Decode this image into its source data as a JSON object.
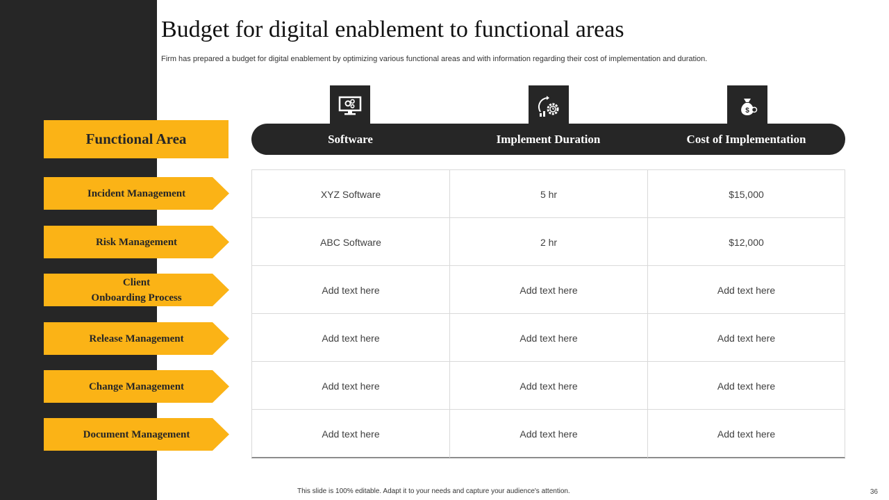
{
  "slide": {
    "title": "Budget for digital enablement to functional areas",
    "subtitle": "Firm has prepared a budget for digital enablement by optimizing various functional areas and with information regarding their cost of implementation and duration.",
    "footer": "This slide is 100% editable. Adapt it to your needs and capture your audience's attention.",
    "page_number": "36"
  },
  "colors": {
    "accent": "#fbb316",
    "dark": "#262626"
  },
  "functional_area": {
    "header": "Functional Area",
    "items": [
      {
        "line1": "Incident  Management",
        "line2": ""
      },
      {
        "line1": "Risk Management",
        "line2": ""
      },
      {
        "line1": "Client",
        "line2": "Onboarding  Process"
      },
      {
        "line1": "Release Management",
        "line2": ""
      },
      {
        "line1": "Change Management",
        "line2": ""
      },
      {
        "line1": "Document  Management",
        "line2": ""
      }
    ]
  },
  "table": {
    "columns": [
      {
        "label": "Software",
        "icon": "monitor-gears-icon"
      },
      {
        "label": "Implement Duration",
        "icon": "gear-clock-icon"
      },
      {
        "label": "Cost of Implementation",
        "icon": "money-bag-icon"
      }
    ],
    "rows": [
      [
        "XYZ  Software",
        "5 hr",
        "$15,000"
      ],
      [
        "ABC Software",
        "2 hr",
        "$12,000"
      ],
      [
        "Add text here",
        "Add text here",
        "Add text here"
      ],
      [
        "Add text here",
        "Add text here",
        "Add text here"
      ],
      [
        "Add text here",
        "Add text here",
        "Add text here"
      ],
      [
        "Add text here",
        "Add text here",
        "Add text here"
      ]
    ]
  }
}
